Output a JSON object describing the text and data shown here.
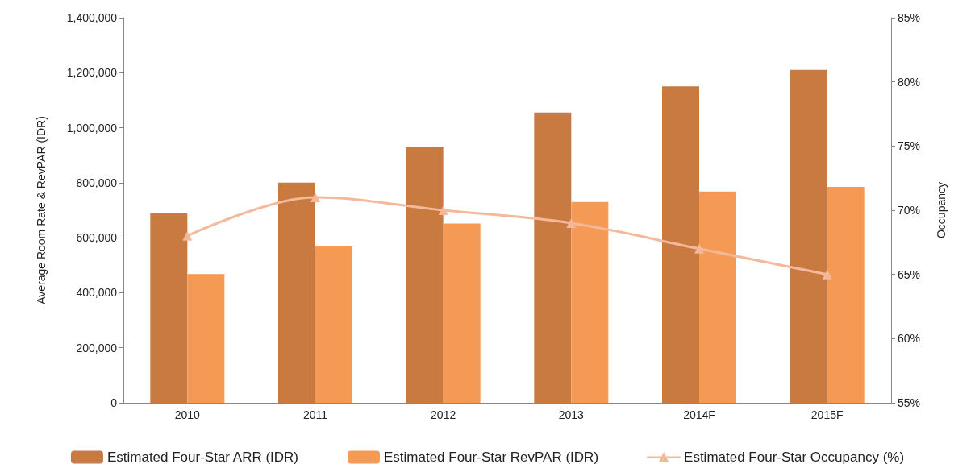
{
  "chart_data": {
    "type": "bar",
    "ylabel": "Average Room Rate & RevPAR (IDR)",
    "y2label": "Occupancy",
    "categories": [
      "2010",
      "2011",
      "2012",
      "2013",
      "2014F",
      "2015F"
    ],
    "series": [
      {
        "name": "Estimated Four-Star ARR (IDR)",
        "color": "#c87a40",
        "values": [
          690000,
          800000,
          930000,
          1055000,
          1150000,
          1210000
        ]
      },
      {
        "name": "Estimated Four-Star RevPAR (IDR)",
        "color": "#f59a55",
        "values": [
          468000,
          568000,
          652000,
          730000,
          768000,
          785000
        ]
      },
      {
        "name": "Estimated Four-Star Occupancy (%)",
        "type": "line",
        "axis": "y2",
        "marker": "triangle",
        "color": "#f4b89a",
        "values": [
          68,
          71,
          70,
          69,
          67,
          65
        ]
      }
    ],
    "ylim": [
      0,
      1400000
    ],
    "yticks": [
      {
        "value": 0,
        "label": "0"
      },
      {
        "value": 200000,
        "label": "200,000"
      },
      {
        "value": 400000,
        "label": "400,000"
      },
      {
        "value": 600000,
        "label": "600,000"
      },
      {
        "value": 800000,
        "label": "800,000"
      },
      {
        "value": 1000000,
        "label": "1,000,000"
      },
      {
        "value": 1200000,
        "label": "1,200,000"
      },
      {
        "value": 1400000,
        "label": "1,400,000"
      }
    ],
    "y2lim": [
      55,
      85
    ],
    "y2ticks": [
      {
        "value": 55,
        "label": "55%"
      },
      {
        "value": 60,
        "label": "60%"
      },
      {
        "value": 65,
        "label": "65%"
      },
      {
        "value": 70,
        "label": "70%"
      },
      {
        "value": 75,
        "label": "75%"
      },
      {
        "value": 80,
        "label": "80%"
      },
      {
        "value": 85,
        "label": "85%"
      }
    ],
    "grid": false,
    "legend": "bottom"
  }
}
